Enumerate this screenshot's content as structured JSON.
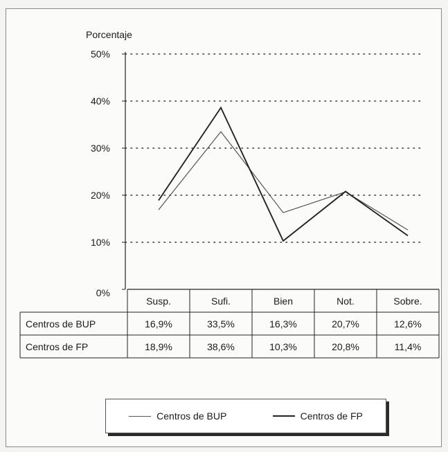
{
  "chart_data": {
    "type": "line",
    "ylabel": "Porcentaje",
    "ylim": [
      0,
      50
    ],
    "yticks": [
      "0%",
      "10%",
      "20%",
      "30%",
      "40%",
      "50%"
    ],
    "grid": true,
    "categories": [
      "Susp.",
      "Sufi.",
      "Bien",
      "Not.",
      "Sobre."
    ],
    "series": [
      {
        "name": "Centros de BUP",
        "values": [
          16.9,
          33.5,
          16.3,
          20.7,
          12.6
        ],
        "labels": [
          "16,9%",
          "33,5%",
          "16,3%",
          "20,7%",
          "12,6%"
        ],
        "color": "#555555"
      },
      {
        "name": "Centros de FP",
        "values": [
          18.9,
          38.6,
          10.3,
          20.8,
          11.4
        ],
        "labels": [
          "18,9%",
          "38,6%",
          "10,3%",
          "20,8%",
          "11,4%"
        ],
        "color": "#222222"
      }
    ],
    "legend": "bottom"
  }
}
